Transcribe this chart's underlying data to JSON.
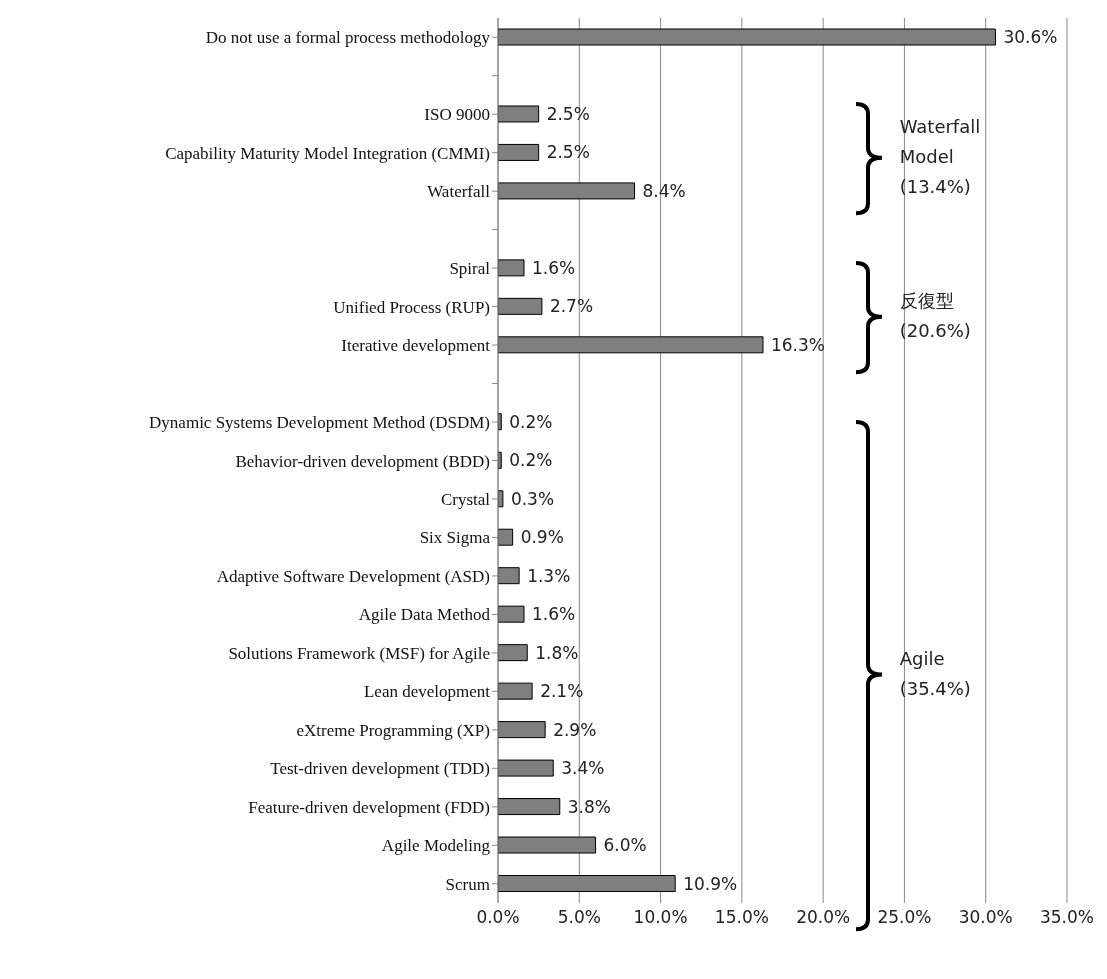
{
  "chart_data": {
    "type": "bar",
    "orientation": "horizontal",
    "categories": [
      "Do not use a formal process methodology",
      null,
      "ISO 9000",
      "Capability Maturity Model Integration (CMMI)",
      "Waterfall",
      null,
      "Spiral",
      "Unified Process (RUP)",
      "Iterative development",
      null,
      "Dynamic Systems Development Method (DSDM)",
      "Behavior-driven development (BDD)",
      "Crystal",
      "Six Sigma",
      "Adaptive Software Development (ASD)",
      "Agile Data Method",
      "Solutions Framework (MSF) for Agile",
      "Lean development",
      "eXtreme Programming (XP)",
      "Test-driven development (TDD)",
      "Feature-driven development (FDD)",
      "Agile Modeling",
      "Scrum"
    ],
    "values": [
      30.6,
      null,
      2.5,
      2.5,
      8.4,
      null,
      1.6,
      2.7,
      16.3,
      null,
      0.2,
      0.2,
      0.3,
      0.9,
      1.3,
      1.6,
      1.8,
      2.1,
      2.9,
      3.4,
      3.8,
      6.0,
      10.9
    ],
    "value_labels": [
      "30.6%",
      null,
      "2.5%",
      "2.5%",
      "8.4%",
      null,
      "1.6%",
      "2.7%",
      "16.3%",
      null,
      "0.2%",
      "0.2%",
      "0.3%",
      "0.9%",
      "1.3%",
      "1.6%",
      "1.8%",
      "2.1%",
      "2.9%",
      "3.4%",
      "3.8%",
      "6.0%",
      "10.9%"
    ],
    "color": "#7f7f7f",
    "xlim": [
      0,
      35
    ],
    "xticks": [
      {
        "value": 0,
        "label": "0.0%"
      },
      {
        "value": 5,
        "label": "5.0%"
      },
      {
        "value": 10,
        "label": "10.0%"
      },
      {
        "value": 15,
        "label": "15.0%"
      },
      {
        "value": 20,
        "label": "20.0%"
      },
      {
        "value": 25,
        "label": "25.0%"
      },
      {
        "value": 30,
        "label": "30.0%"
      },
      {
        "value": 35,
        "label": "35.0%"
      }
    ],
    "grid": "x",
    "annotations": [
      "Waterfall Model (13.4%)",
      "反復型 (20.6%)",
      "Agile (35.4%)"
    ]
  }
}
